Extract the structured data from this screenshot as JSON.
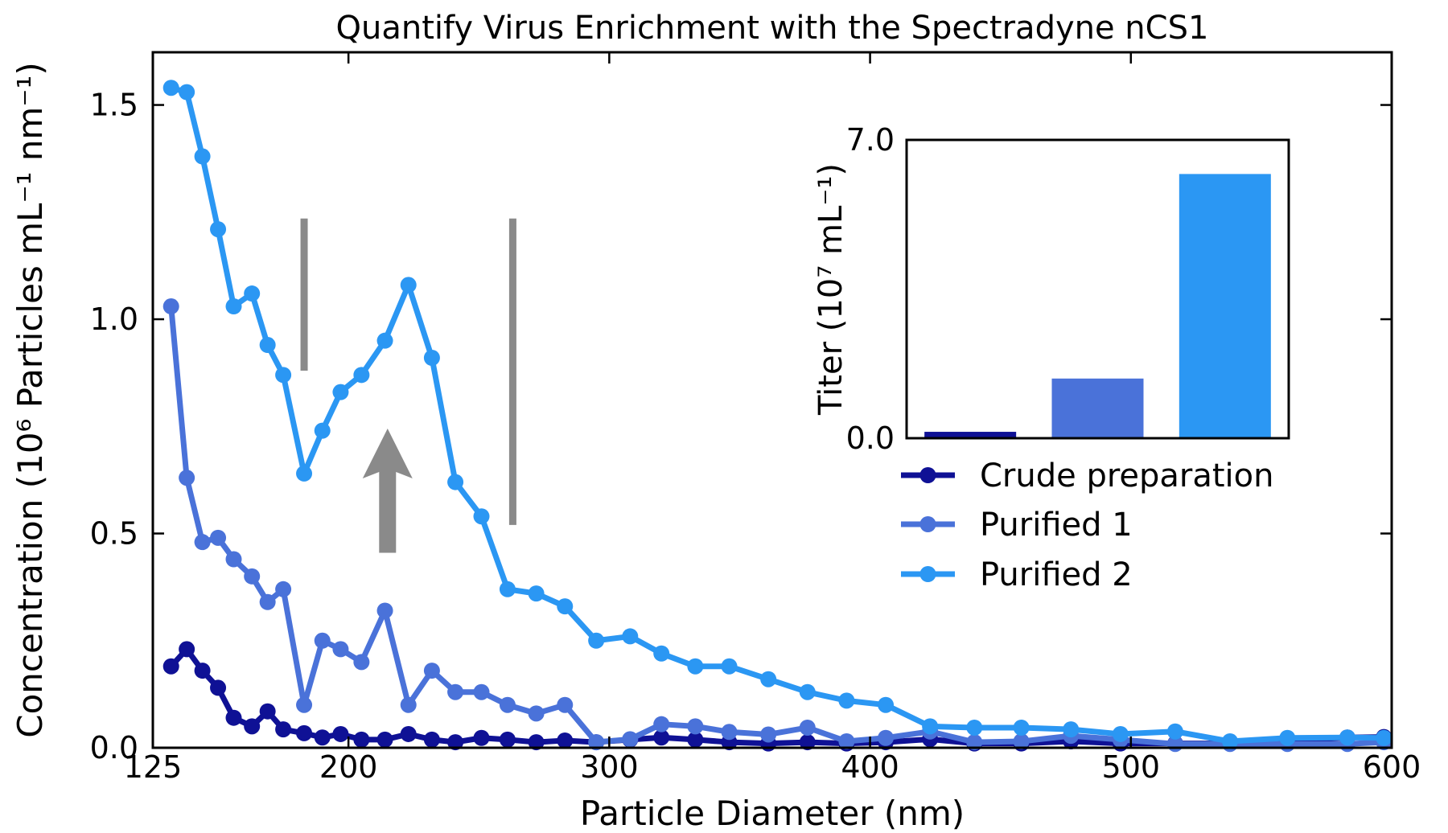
{
  "chart_data": {
    "type": "line",
    "title": "Quantify Virus Enrichment with the Spectradyne nCS1",
    "xlabel": "Particle Diameter (nm)",
    "ylabel": "Concentration (10⁶ Particles mL⁻¹ nm⁻¹)",
    "xlim": [
      125,
      600
    ],
    "ylim": [
      0,
      1.623
    ],
    "grid": false,
    "xticks": [
      "125",
      "200",
      "300",
      "400",
      "500",
      "600"
    ],
    "xtick_values": [
      125,
      200,
      300,
      400,
      500,
      600
    ],
    "yticks": [
      "0.0",
      "0.5",
      "1.0",
      "1.5"
    ],
    "ytick_values": [
      0,
      0.5,
      1.0,
      1.5
    ],
    "x": [
      132,
      138,
      144,
      150,
      156,
      163,
      169,
      175,
      183,
      190,
      197,
      205,
      214,
      223,
      232,
      241,
      251,
      261,
      272,
      283,
      295,
      308,
      320,
      333,
      346,
      361,
      376,
      391,
      406,
      423,
      440,
      458,
      477,
      496,
      517,
      538,
      560,
      583,
      597
    ],
    "series": [
      {
        "name": "Crude preparation",
        "color": "#0f1195",
        "values": [
          0.19,
          0.23,
          0.18,
          0.14,
          0.07,
          0.05,
          0.085,
          0.043,
          0.034,
          0.024,
          0.032,
          0.019,
          0.019,
          0.032,
          0.019,
          0.013,
          0.023,
          0.019,
          0.013,
          0.017,
          0.013,
          0.019,
          0.024,
          0.019,
          0.013,
          0.01,
          0.013,
          0.01,
          0.013,
          0.02,
          0.01,
          0.01,
          0.015,
          0.01,
          0.01,
          0.01,
          0.015,
          0.024,
          0.025
        ]
      },
      {
        "name": "Purified 1",
        "color": "#4a72d9",
        "values": [
          1.03,
          0.63,
          0.48,
          0.49,
          0.44,
          0.4,
          0.34,
          0.37,
          0.1,
          0.25,
          0.23,
          0.2,
          0.32,
          0.1,
          0.18,
          0.13,
          0.13,
          0.1,
          0.08,
          0.1,
          0.013,
          0.02,
          0.055,
          0.05,
          0.037,
          0.031,
          0.047,
          0.015,
          0.023,
          0.038,
          0.013,
          0.015,
          0.028,
          0.019,
          0.009,
          0.009,
          0.009,
          0.009,
          0.013
        ]
      },
      {
        "name": "Purified 2",
        "color": "#2b97f3",
        "values": [
          1.54,
          1.53,
          1.38,
          1.21,
          1.03,
          1.06,
          0.94,
          0.87,
          0.64,
          0.74,
          0.83,
          0.87,
          0.95,
          1.08,
          0.91,
          0.62,
          0.54,
          0.37,
          0.36,
          0.33,
          0.25,
          0.26,
          0.22,
          0.19,
          0.19,
          0.16,
          0.13,
          0.11,
          0.1,
          0.05,
          0.047,
          0.047,
          0.043,
          0.032,
          0.038,
          0.015,
          0.023,
          0.024,
          0.023
        ]
      }
    ],
    "annotations": {
      "color": "#8a8a8a",
      "vlines": [
        {
          "x": 183,
          "y_from": 0.88,
          "y_to": 1.235
        },
        {
          "x": 263,
          "y_from": 0.52,
          "y_to": 1.235
        }
      ],
      "arrow_up": {
        "x": 215,
        "y_tail": 0.455,
        "y_tip": 0.745
      }
    },
    "legend": {
      "position": "center right",
      "items": [
        "Crude preparation",
        "Purified 1",
        "Purified 2"
      ]
    },
    "inset": {
      "type": "bar",
      "ylabel": "Titer (10⁷ mL⁻¹)",
      "ylim": [
        0,
        7
      ],
      "yticks": [
        "0.0",
        "7.0"
      ],
      "categories": [
        "Crude preparation",
        "Purified 1",
        "Purified 2"
      ],
      "values": [
        0.15,
        1.4,
        6.2
      ]
    }
  }
}
